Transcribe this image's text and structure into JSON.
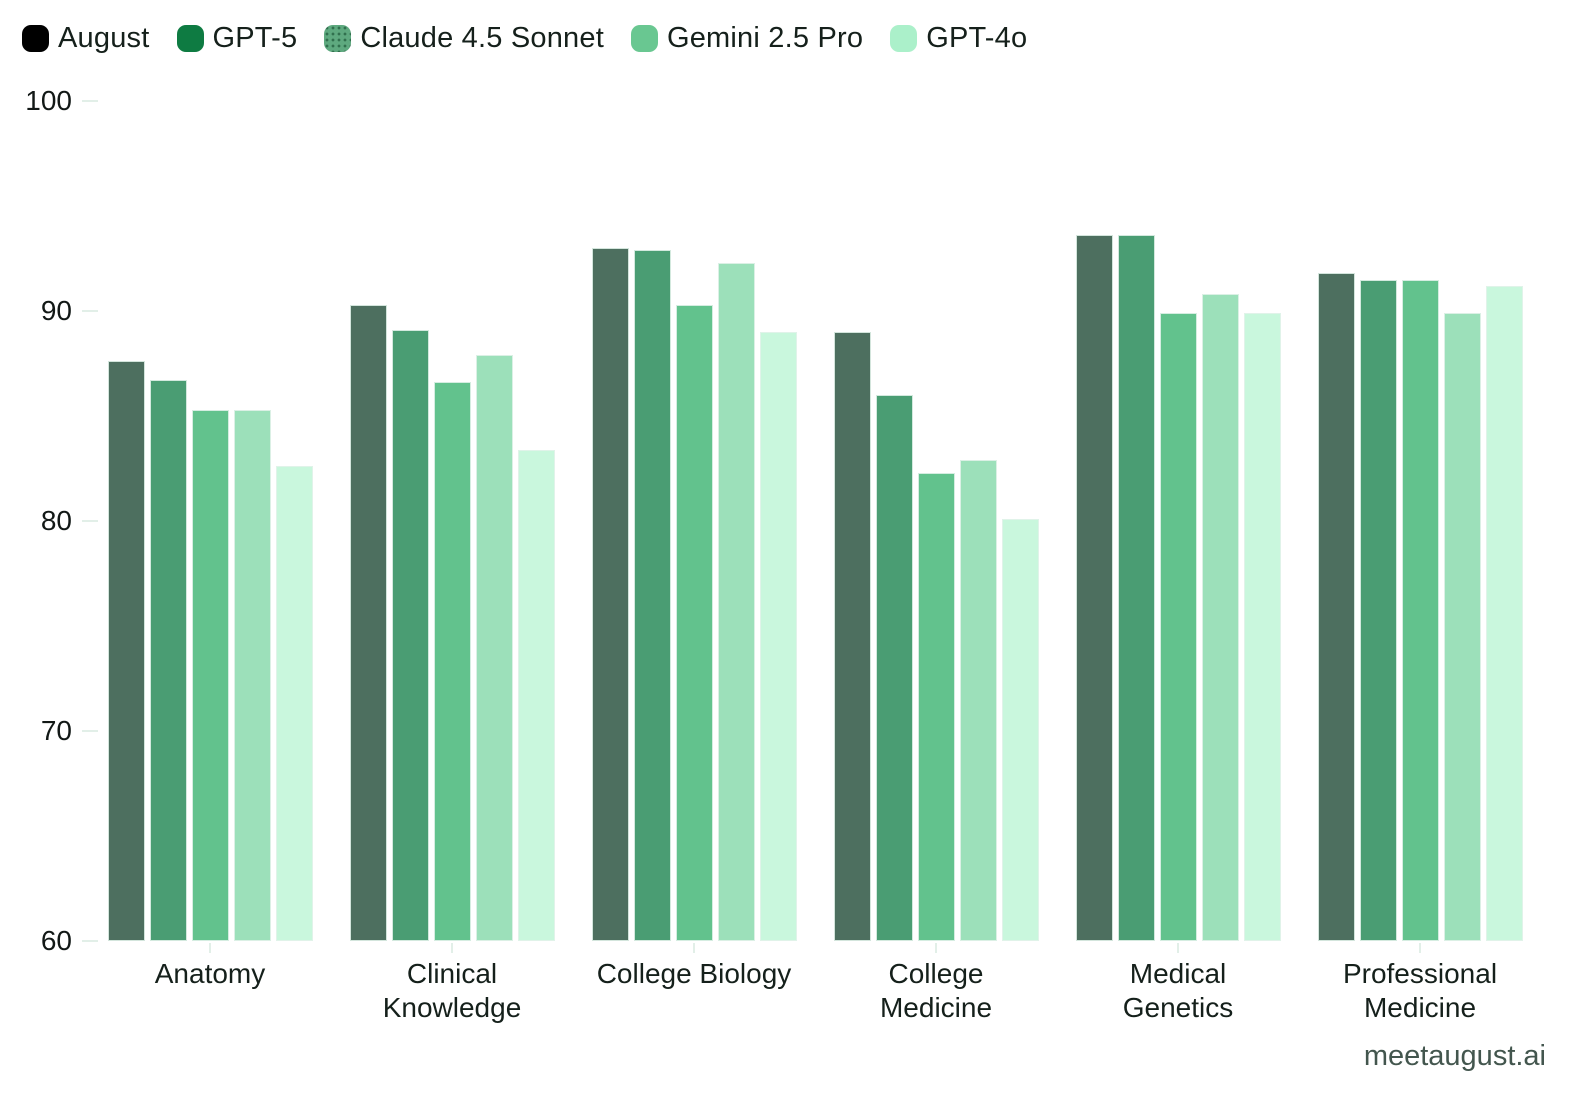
{
  "legend": {
    "items": [
      {
        "label": "August",
        "swatch_color": "#000000",
        "textured": false
      },
      {
        "label": "GPT-5",
        "swatch_color": "#0e7b42",
        "textured": false
      },
      {
        "label": "Claude 4.5 Sonnet",
        "swatch_color": "#5ea97f",
        "textured": true
      },
      {
        "label": "Gemini 2.5 Pro",
        "swatch_color": "#69c791",
        "textured": false
      },
      {
        "label": "GPT-4o",
        "swatch_color": "#abf0ca",
        "textured": false
      }
    ]
  },
  "chart_data": {
    "type": "bar",
    "title": "",
    "categories": [
      "Anatomy",
      "Clinical Knowledge",
      "College Biology",
      "College Medicine",
      "Medical Genetics",
      "Professional Medicine"
    ],
    "category_display_labels": [
      "Anatomy",
      "Clinical\nKnowledge",
      "College Biology",
      "College\nMedicine",
      "Medical\nGenetics",
      "Professional\nMedicine"
    ],
    "series": [
      {
        "name": "August",
        "color": "#4d6f5f",
        "values": [
          87.6,
          90.3,
          93.0,
          89.0,
          93.6,
          91.8
        ]
      },
      {
        "name": "GPT-5",
        "color": "#4a9d73",
        "values": [
          86.7,
          89.1,
          92.9,
          86.0,
          93.6,
          91.5
        ]
      },
      {
        "name": "Claude 4.5 Sonnet",
        "color": "#62c28d",
        "values": [
          85.3,
          86.6,
          90.3,
          82.3,
          89.9,
          91.5
        ]
      },
      {
        "name": "Gemini 2.5 Pro",
        "color": "#9ce0ba",
        "values": [
          85.3,
          87.9,
          92.3,
          82.9,
          90.8,
          89.9
        ]
      },
      {
        "name": "GPT-4o",
        "color": "#c9f7dd",
        "values": [
          82.6,
          83.4,
          89.0,
          80.1,
          89.9,
          91.2
        ]
      }
    ],
    "ylim": [
      60,
      100
    ],
    "yticks": [
      100,
      90,
      80,
      70,
      60
    ],
    "grid": false,
    "legend_position": "top-left"
  },
  "footer": {
    "brand": "meetaugust.ai"
  }
}
